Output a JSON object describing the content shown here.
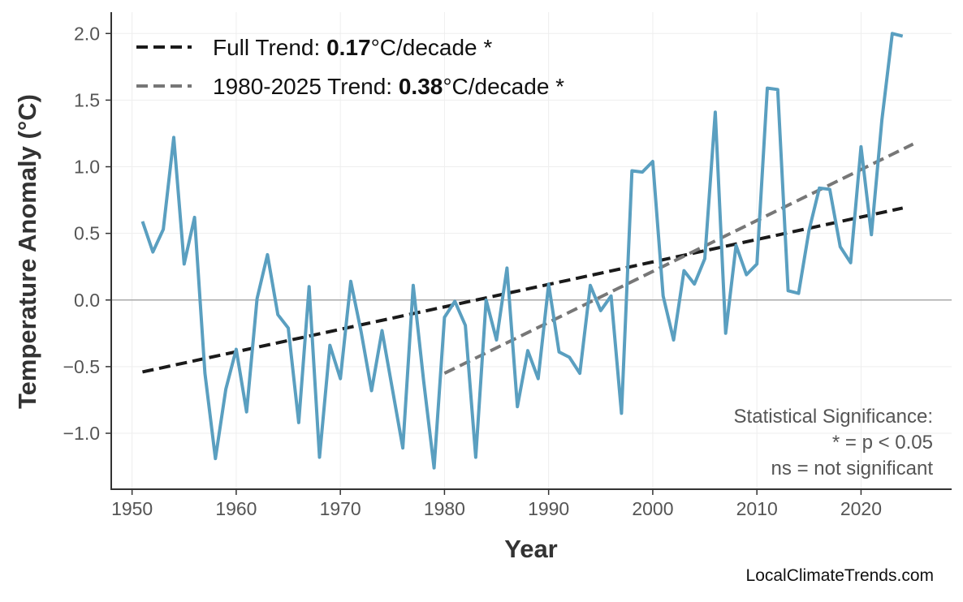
{
  "chart_data": {
    "type": "line",
    "title": "",
    "xlabel": "Year",
    "ylabel": "Temperature Anomaly (°C)",
    "xlim": [
      1948,
      2028.7
    ],
    "ylim": [
      -1.42,
      2.16
    ],
    "grid": true,
    "legend_position": "top-left",
    "x_ticks": [
      1950,
      1960,
      1970,
      1980,
      1990,
      2000,
      2010,
      2020
    ],
    "x_tick_labels": [
      "1950",
      "1960",
      "1970",
      "1980",
      "1990",
      "2000",
      "2010",
      "2020"
    ],
    "y_ticks": [
      -1.0,
      -0.5,
      0.0,
      0.5,
      1.0,
      1.5,
      2.0
    ],
    "y_tick_labels": [
      "−1.0",
      "−0.5",
      "0.0",
      "0.5",
      "1.0",
      "1.5",
      "2.0"
    ],
    "series": [
      {
        "color": "#5a9fc0",
        "x": [
          1951,
          1952,
          1953,
          1954,
          1955,
          1956,
          1957,
          1958,
          1959,
          1960,
          1961,
          1962,
          1963,
          1964,
          1965,
          1966,
          1967,
          1968,
          1969,
          1970,
          1971,
          1972,
          1973,
          1974,
          1975,
          1976,
          1977,
          1978,
          1979,
          1980,
          1981,
          1982,
          1983,
          1984,
          1985,
          1986,
          1987,
          1988,
          1989,
          1990,
          1991,
          1992,
          1993,
          1994,
          1995,
          1996,
          1997,
          1998,
          1999,
          2000,
          2001,
          2002,
          2003,
          2004,
          2005,
          2006,
          2007,
          2008,
          2009,
          2010,
          2011,
          2012,
          2013,
          2014,
          2015,
          2016,
          2017,
          2018,
          2019,
          2020,
          2021,
          2022,
          2023,
          2024
        ],
        "y": [
          0.59,
          0.36,
          0.53,
          1.22,
          0.27,
          0.62,
          -0.55,
          -1.19,
          -0.67,
          -0.37,
          -0.84,
          0.01,
          0.34,
          -0.11,
          -0.21,
          -0.92,
          0.1,
          -1.18,
          -0.34,
          -0.59,
          0.14,
          -0.24,
          -0.68,
          -0.23,
          -0.67,
          -1.11,
          0.11,
          -0.61,
          -1.26,
          -0.13,
          -0.01,
          -0.19,
          -1.18,
          0.0,
          -0.3,
          0.24,
          -0.8,
          -0.38,
          -0.59,
          0.12,
          -0.39,
          -0.43,
          -0.55,
          0.11,
          -0.08,
          0.03,
          -0.85,
          0.97,
          0.96,
          1.04,
          0.03,
          -0.3,
          0.22,
          0.12,
          0.31,
          1.41,
          -0.25,
          0.41,
          0.19,
          0.27,
          1.59,
          1.58,
          0.07,
          0.05,
          0.52,
          0.84,
          0.83,
          0.4,
          0.28,
          1.15,
          0.49,
          1.35,
          2.0,
          1.98
        ]
      }
    ],
    "trend_lines": [
      {
        "name": "Full Trend",
        "color": "#1a1a1a",
        "x": [
          1951,
          2024
        ],
        "y": [
          -0.54,
          0.69
        ]
      },
      {
        "name": "1980-2025 Trend",
        "color": "#777777",
        "x": [
          1980,
          2025
        ],
        "y": [
          -0.55,
          1.17
        ]
      }
    ],
    "legend": [
      {
        "prefix": "Full Trend: ",
        "value": "0.17",
        "suffix": "°C/decade *",
        "color": "#1a1a1a"
      },
      {
        "prefix": "1980-2025 Trend: ",
        "value": "0.38",
        "suffix": "°C/decade *",
        "color": "#777777"
      }
    ],
    "annotation": [
      "Statistical Significance:",
      "* = p < 0.05",
      "ns = not significant"
    ],
    "watermark": "LocalClimateTrends.com"
  }
}
